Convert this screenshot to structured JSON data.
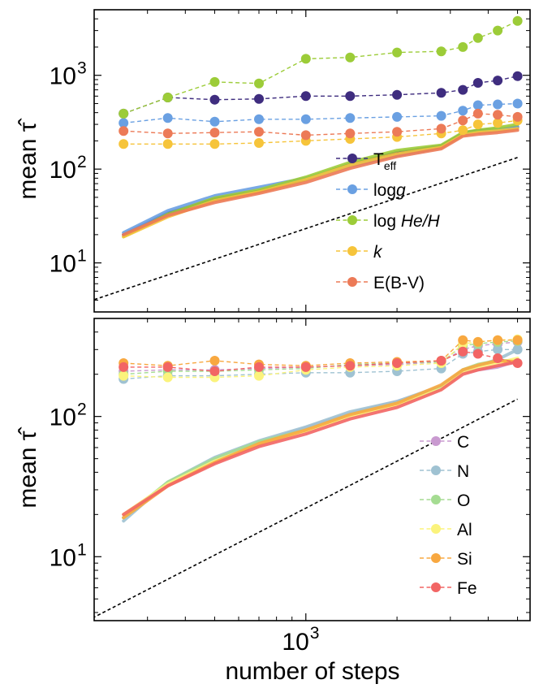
{
  "chart_data": [
    {
      "type": "line",
      "panel": "top",
      "xlabel": "",
      "ylabel": "mean τ̂",
      "x_scale": "log",
      "y_scale": "log",
      "xlim": [
        200,
        5500
      ],
      "ylim": [
        3,
        5000
      ],
      "x_tick_labels": [],
      "y_ticks": [
        {
          "value": 10,
          "base": "10",
          "exp": "1"
        },
        {
          "value": 100,
          "base": "10",
          "exp": "2"
        },
        {
          "value": 1000,
          "base": "10",
          "exp": "3"
        }
      ],
      "x": [
        250,
        350,
        500,
        700,
        1000,
        1400,
        2000,
        2800,
        3300,
        3700,
        4300,
        5000
      ],
      "reference_line": {
        "x": [
          170,
          5000
        ],
        "y": [
          3.4,
          133
        ],
        "style": "dashed",
        "color": "#000000"
      },
      "legend_position": "lower-right",
      "series": [
        {
          "name": "T",
          "name_subscript": "eff",
          "color": "#3f2d7f",
          "tau": [
            390,
            580,
            550,
            560,
            600,
            600,
            620,
            650,
            700,
            830,
            880,
            980
          ],
          "mean": [
            20,
            34,
            48,
            58,
            78,
            112,
            150,
            175,
            240,
            258,
            265,
            280
          ]
        },
        {
          "name": "log",
          "name_italic": "g",
          "color": "#6aa0e2",
          "tau": [
            310,
            350,
            320,
            340,
            340,
            350,
            360,
            370,
            420,
            480,
            490,
            500
          ],
          "mean": [
            21,
            36,
            52,
            64,
            80,
            108,
            140,
            170,
            235,
            250,
            262,
            285
          ]
        },
        {
          "name": "log ",
          "name_italic": "He/H",
          "color": "#9ccc38",
          "tau": [
            390,
            580,
            850,
            820,
            1500,
            1550,
            1750,
            1800,
            2000,
            2500,
            3000,
            3800
          ],
          "mean": [
            19,
            33,
            49,
            60,
            82,
            118,
            158,
            180,
            245,
            260,
            275,
            300
          ]
        },
        {
          "name": "",
          "name_italic": "k",
          "color": "#f6c43a",
          "tau": [
            185,
            185,
            185,
            190,
            200,
            210,
            220,
            240,
            260,
            300,
            310,
            330
          ],
          "mean": [
            19,
            31,
            46,
            57,
            77,
            110,
            145,
            170,
            230,
            245,
            255,
            270
          ]
        },
        {
          "name": "E(B-V)",
          "color": "#ec7a57",
          "tau": [
            255,
            240,
            245,
            250,
            230,
            240,
            250,
            270,
            330,
            390,
            380,
            360
          ],
          "mean": [
            20,
            32,
            44,
            55,
            72,
            102,
            136,
            165,
            225,
            235,
            245,
            260
          ]
        }
      ]
    },
    {
      "type": "line",
      "panel": "bottom",
      "xlabel": "number of steps",
      "ylabel": "mean τ̂",
      "x_scale": "log",
      "y_scale": "log",
      "xlim": [
        200,
        5500
      ],
      "ylim": [
        3.5,
        500
      ],
      "x_tick_labels": [
        {
          "value": 1000,
          "base": "10",
          "exp": "3"
        }
      ],
      "y_ticks": [
        {
          "value": 10,
          "base": "10",
          "exp": "1"
        },
        {
          "value": 100,
          "base": "10",
          "exp": "2"
        }
      ],
      "x": [
        250,
        350,
        500,
        700,
        1000,
        1400,
        2000,
        2800,
        3300,
        3700,
        4300,
        5000
      ],
      "reference_line": {
        "x": [
          190,
          5000
        ],
        "y": [
          3.5,
          133
        ],
        "style": "dashed",
        "color": "#000000"
      },
      "legend_position": "lower-right",
      "series": [
        {
          "name": "C",
          "color": "#c99ad0",
          "tau": [
            210,
            215,
            215,
            220,
            225,
            230,
            235,
            245,
            300,
            320,
            330,
            340
          ],
          "mean": [
            19,
            33,
            49,
            65,
            83,
            105,
            128,
            160,
            205,
            215,
            225,
            250
          ]
        },
        {
          "name": "N",
          "color": "#9fc2d2",
          "tau": [
            185,
            195,
            195,
            200,
            205,
            205,
            210,
            220,
            280,
            290,
            300,
            300
          ],
          "mean": [
            18,
            34,
            51,
            67,
            84,
            108,
            128,
            165,
            215,
            230,
            255,
            300
          ]
        },
        {
          "name": "O",
          "color": "#a5dc92",
          "tau": [
            200,
            210,
            210,
            215,
            220,
            235,
            240,
            245,
            320,
            330,
            340,
            345
          ],
          "mean": [
            19,
            34,
            50,
            66,
            80,
            103,
            124,
            160,
            215,
            235,
            250,
            250
          ]
        },
        {
          "name": "Al",
          "color": "#fbf37c",
          "tau": [
            195,
            190,
            190,
            195,
            215,
            225,
            230,
            240,
            330,
            340,
            350,
            355
          ],
          "mean": [
            20,
            33,
            48,
            63,
            79,
            100,
            121,
            157,
            205,
            220,
            240,
            260
          ]
        },
        {
          "name": "Si",
          "color": "#f8a840",
          "tau": [
            240,
            230,
            250,
            235,
            230,
            240,
            245,
            250,
            350,
            340,
            350,
            350
          ],
          "mean": [
            19,
            32,
            47,
            64,
            80,
            103,
            124,
            168,
            215,
            232,
            250,
            245
          ]
        },
        {
          "name": "Fe",
          "color": "#f26564",
          "tau": [
            225,
            225,
            210,
            225,
            225,
            230,
            240,
            250,
            290,
            280,
            260,
            240
          ],
          "mean": [
            20,
            32,
            46,
            61,
            75,
            96,
            116,
            155,
            200,
            215,
            230,
            245
          ]
        }
      ]
    }
  ]
}
